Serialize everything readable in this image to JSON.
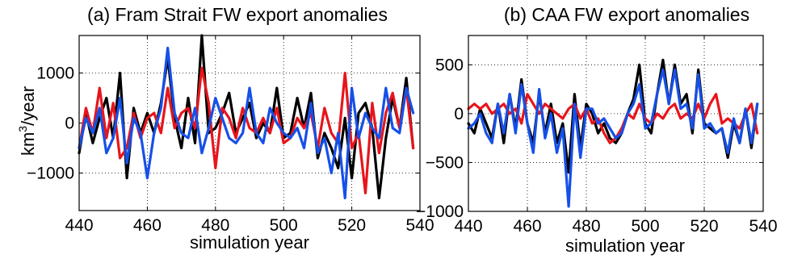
{
  "chart_data": [
    {
      "type": "line",
      "title": "(a) Fram Strait FW export anomalies",
      "xlabel": "simulation year",
      "ylabel": "km",
      "ylabel_sup": "3",
      "ylabel_suffix": "/year",
      "xlim": [
        440,
        540
      ],
      "ylim": [
        -1750,
        1750
      ],
      "grid": true,
      "x_ticks": [
        440,
        460,
        480,
        500,
        520,
        540
      ],
      "y_ticks": [
        -1000,
        0,
        1000
      ],
      "x_tick_labels": [
        "440",
        "460",
        "480",
        "500",
        "520",
        "540"
      ],
      "y_tick_labels": [
        "−1000",
        "0",
        "1000"
      ],
      "x": [
        440,
        442,
        444,
        446,
        448,
        450,
        452,
        454,
        456,
        458,
        460,
        462,
        464,
        466,
        468,
        470,
        472,
        474,
        476,
        478,
        480,
        482,
        484,
        486,
        488,
        490,
        492,
        494,
        496,
        498,
        500,
        502,
        504,
        506,
        508,
        510,
        512,
        514,
        516,
        518,
        520,
        522,
        524,
        526,
        528,
        530,
        532,
        534,
        536,
        538
      ],
      "series": [
        {
          "color": "#000000",
          "values": [
            -600,
            200,
            -400,
            100,
            500,
            -300,
            1000,
            -1100,
            300,
            -200,
            200,
            -200,
            400,
            1300,
            100,
            -500,
            500,
            -400,
            1750,
            -200,
            -100,
            200,
            600,
            -200,
            100,
            400,
            -300,
            0,
            -200,
            700,
            -300,
            -200,
            500,
            -100,
            600,
            -700,
            -200,
            -500,
            -900,
            100,
            -1100,
            200,
            400,
            -100,
            -1500,
            -300,
            500,
            -100,
            900,
            -500
          ]
        },
        {
          "color": "#e8141b",
          "values": [
            -500,
            300,
            -200,
            700,
            -300,
            400,
            -700,
            -500,
            200,
            -300,
            100,
            200,
            -200,
            700,
            -100,
            200,
            300,
            -100,
            1100,
            400,
            -900,
            300,
            100,
            -300,
            300,
            -100,
            -200,
            100,
            -200,
            300,
            -400,
            -300,
            100,
            -100,
            200,
            -500,
            300,
            -200,
            -400,
            1000,
            -500,
            -200,
            -1400,
            400,
            -600,
            200,
            600,
            -100,
            700,
            -500
          ]
        },
        {
          "color": "#1650e8",
          "values": [
            -500,
            100,
            -200,
            300,
            -600,
            -300,
            500,
            -800,
            100,
            -200,
            -1100,
            -200,
            300,
            1500,
            200,
            -200,
            -300,
            300,
            -600,
            -100,
            500,
            100,
            -300,
            -400,
            -200,
            700,
            -200,
            -400,
            300,
            0,
            -200,
            -300,
            -100,
            -500,
            400,
            -600,
            -300,
            -1000,
            -200,
            -1500,
            700,
            -300,
            200,
            -100,
            -300,
            700,
            -100,
            -200,
            700,
            200
          ]
        }
      ]
    },
    {
      "type": "line",
      "title": "(b) CAA FW export anomalies",
      "xlabel": "simulation year",
      "ylabel": "",
      "xlim": [
        440,
        540
      ],
      "ylim": [
        -1000,
        800
      ],
      "grid": true,
      "x_ticks": [
        440,
        460,
        480,
        500,
        520,
        540
      ],
      "y_ticks": [
        -1000,
        -500,
        0,
        500
      ],
      "x_tick_labels": [
        "440",
        "460",
        "480",
        "500",
        "520",
        "540"
      ],
      "y_tick_labels": [
        "−1000",
        "−500",
        "0",
        "500"
      ],
      "x": [
        440,
        442,
        444,
        446,
        448,
        450,
        452,
        454,
        456,
        458,
        460,
        462,
        464,
        466,
        468,
        470,
        472,
        474,
        476,
        478,
        480,
        482,
        484,
        486,
        488,
        490,
        492,
        494,
        496,
        498,
        500,
        502,
        504,
        506,
        508,
        510,
        512,
        514,
        516,
        518,
        520,
        522,
        524,
        526,
        528,
        530,
        532,
        534,
        536,
        538
      ],
      "series": [
        {
          "color": "#000000",
          "values": [
            -100,
            -200,
            50,
            -100,
            -250,
            100,
            -300,
            200,
            -150,
            350,
            -100,
            -300,
            200,
            -200,
            100,
            -300,
            -100,
            -600,
            200,
            -350,
            100,
            0,
            -200,
            -100,
            -250,
            -300,
            -200,
            0,
            150,
            500,
            -100,
            -200,
            200,
            550,
            100,
            500,
            100,
            200,
            -200,
            450,
            -100,
            -150,
            -200,
            -150,
            -450,
            -100,
            -300,
            50,
            -350,
            100
          ]
        },
        {
          "color": "#e8141b",
          "values": [
            50,
            100,
            50,
            100,
            0,
            50,
            100,
            0,
            50,
            -100,
            200,
            100,
            0,
            100,
            50,
            0,
            -50,
            50,
            100,
            -50,
            50,
            -100,
            -50,
            -200,
            -300,
            -250,
            -150,
            0,
            -50,
            100,
            -50,
            -100,
            0,
            -50,
            50,
            100,
            -50,
            0,
            -50,
            100,
            -50,
            100,
            200,
            -100,
            -50,
            -100,
            -150,
            0,
            100,
            -200
          ]
        },
        {
          "color": "#1650e8",
          "values": [
            -150,
            -100,
            0,
            -200,
            -300,
            100,
            -200,
            200,
            -200,
            300,
            -100,
            -400,
            250,
            -250,
            0,
            -400,
            -150,
            -950,
            100,
            -450,
            50,
            50,
            -100,
            -50,
            -150,
            -250,
            -200,
            0,
            100,
            300,
            -150,
            -100,
            200,
            450,
            100,
            450,
            50,
            100,
            -150,
            400,
            -150,
            -100,
            -200,
            -150,
            -400,
            -50,
            -300,
            50,
            -300,
            100
          ]
        }
      ]
    }
  ]
}
